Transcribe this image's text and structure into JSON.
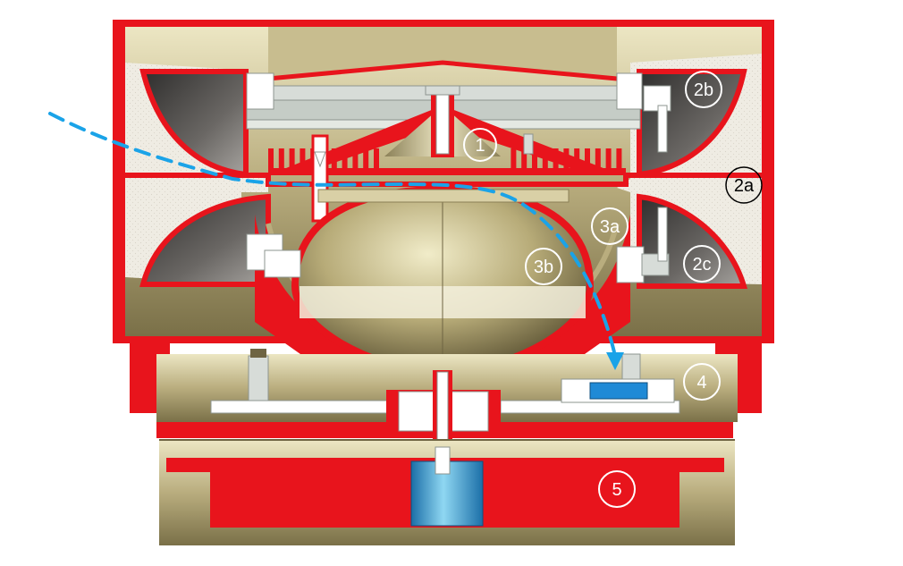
{
  "diagram": {
    "callouts": [
      {
        "id": "1",
        "label": "1"
      },
      {
        "id": "2a",
        "label": "2a"
      },
      {
        "id": "2b",
        "label": "2b"
      },
      {
        "id": "2c",
        "label": "2c"
      },
      {
        "id": "3a",
        "label": "3a"
      },
      {
        "id": "3b",
        "label": "3b"
      },
      {
        "id": "4",
        "label": "4"
      },
      {
        "id": "5",
        "label": "5"
      }
    ],
    "colors": {
      "red": "#e8141c",
      "khaki": "#b9ad7e",
      "khaki_light": "#e3dcb6",
      "khaki_dark": "#6e6442",
      "steel": "#d7dcd8",
      "steel_dark": "#8d958f",
      "foam": "#efece3",
      "gray_dark": "#4d4a47",
      "flow_blue": "#1aa3e8",
      "block_blue": "#1f8ad6",
      "white": "#ffffff"
    }
  }
}
